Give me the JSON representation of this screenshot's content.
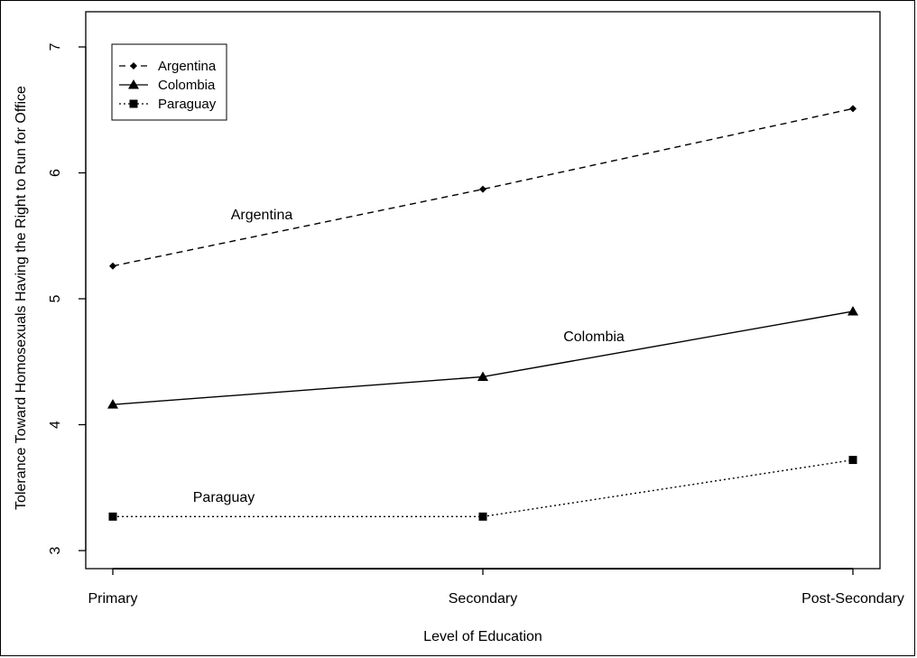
{
  "chart_data": {
    "type": "line",
    "title": "",
    "xlabel": "Level of Education",
    "ylabel": "Tolerance Toward Homosexuals Having the Right to Run for Office",
    "categories": [
      "Primary",
      "Secondary",
      "Post-Secondary"
    ],
    "ylim": [
      3,
      7
    ],
    "yticks": [
      3,
      4,
      5,
      6,
      7
    ],
    "grid": false,
    "legend_position": "top-left",
    "series": [
      {
        "name": "Argentina",
        "values": [
          5.26,
          5.87,
          6.51
        ],
        "line_style": "dashed",
        "marker": "diamond",
        "label": "Argentina"
      },
      {
        "name": "Colombia",
        "values": [
          4.16,
          4.38,
          4.9
        ],
        "line_style": "solid",
        "marker": "triangle",
        "label": "Colombia"
      },
      {
        "name": "Paraguay",
        "values": [
          3.27,
          3.27,
          3.72
        ],
        "line_style": "dotted",
        "marker": "square",
        "label": "Paraguay"
      }
    ]
  }
}
